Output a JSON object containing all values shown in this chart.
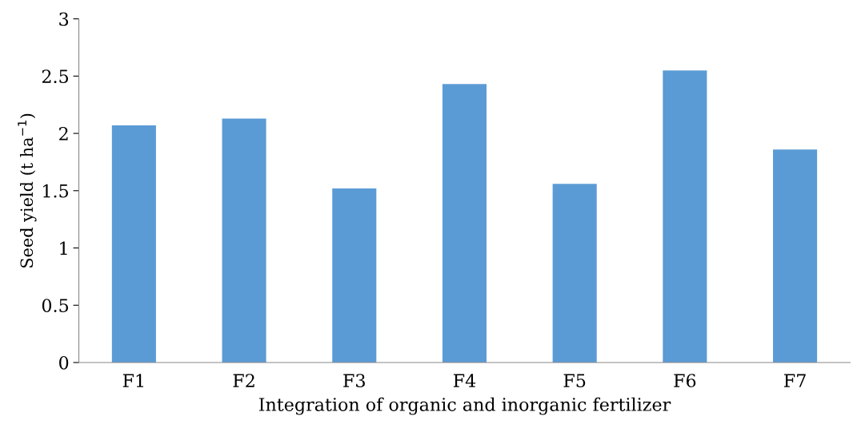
{
  "chart_data": {
    "type": "bar",
    "xlabel": "Integration of organic and inorganic fertilizer",
    "ylabel": "Seed yield (t ha$^{−1}$)",
    "categories": [
      "F1",
      "F2",
      "F3",
      "F4",
      "F5",
      "F6",
      "F7"
    ],
    "values": [
      2.07,
      2.13,
      1.52,
      2.43,
      1.56,
      2.55,
      1.86
    ],
    "color": "#5b9bd5",
    "ylim": [
      0,
      3
    ],
    "yticks": [
      0,
      0.5,
      1,
      1.5,
      2,
      2.5,
      3
    ],
    "grid": false,
    "legend": false
  }
}
